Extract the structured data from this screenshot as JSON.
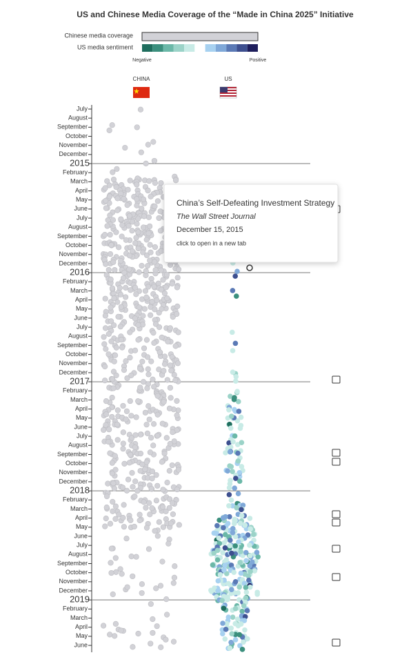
{
  "chart_data": {
    "type": "beeswarm",
    "title": "US and Chinese Media Coverage of the “Made in China 2025” Initiative",
    "legend": {
      "coverage_label": "Chinese media coverage",
      "sentiment_label": "US media sentiment",
      "negative": "Negative",
      "positive": "Positive",
      "sentiment_colors": [
        "#1f6e5e",
        "#3b8f7d",
        "#6bb8a8",
        "#9bd3c8",
        "#c8ebe6",
        "#ffffff",
        "#a7d1f0",
        "#7fa8d8",
        "#5a79b5",
        "#3d4f8f",
        "#1e1e5c"
      ]
    },
    "categories": [
      "July",
      "August",
      "September",
      "October",
      "November",
      "December",
      "2015",
      "February",
      "March",
      "April",
      "May",
      "June",
      "July",
      "August",
      "September",
      "October",
      "November",
      "December",
      "2016",
      "February",
      "March",
      "April",
      "May",
      "June",
      "July",
      "August",
      "September",
      "October",
      "November",
      "December",
      "2017",
      "February",
      "March",
      "April",
      "May",
      "June",
      "July",
      "August",
      "September",
      "October",
      "November",
      "December",
      "2018",
      "February",
      "March",
      "April",
      "May",
      "June",
      "July",
      "August",
      "September",
      "October",
      "November",
      "December",
      "2019",
      "February",
      "March",
      "April",
      "May",
      "June"
    ],
    "series": [
      {
        "name": "CHINA",
        "color": "#d2d2d7",
        "values": [
          1,
          0,
          3,
          0,
          3,
          1,
          2,
          3,
          20,
          24,
          24,
          24,
          24,
          24,
          24,
          24,
          24,
          24,
          24,
          24,
          24,
          24,
          22,
          20,
          18,
          16,
          16,
          16,
          16,
          16,
          16,
          16,
          16,
          16,
          16,
          16,
          16,
          16,
          16,
          16,
          16,
          16,
          16,
          16,
          16,
          16,
          14,
          3,
          4,
          3,
          3,
          5,
          4,
          5,
          2,
          0,
          2,
          6,
          6,
          4
        ]
      },
      {
        "name": "US",
        "color": "#7fa8d8",
        "values": [
          0,
          0,
          0,
          0,
          0,
          0,
          0,
          0,
          0,
          0,
          0,
          0,
          0,
          0,
          0,
          0,
          0,
          1,
          2,
          0,
          1,
          1,
          0,
          0,
          0,
          1,
          1,
          1,
          0,
          3,
          1,
          2,
          4,
          6,
          6,
          5,
          3,
          6,
          8,
          6,
          8,
          4,
          4,
          3,
          8,
          15,
          20,
          22,
          25,
          28,
          25,
          22,
          20,
          25,
          18,
          12,
          10,
          12,
          14,
          8
        ]
      }
    ],
    "tooltip": {
      "title": "China’s Self-Defeating Investment Strategy",
      "source": "The Wall Street Journal",
      "date": "December 15, 2015",
      "hint": "click to open in a new tab"
    }
  }
}
